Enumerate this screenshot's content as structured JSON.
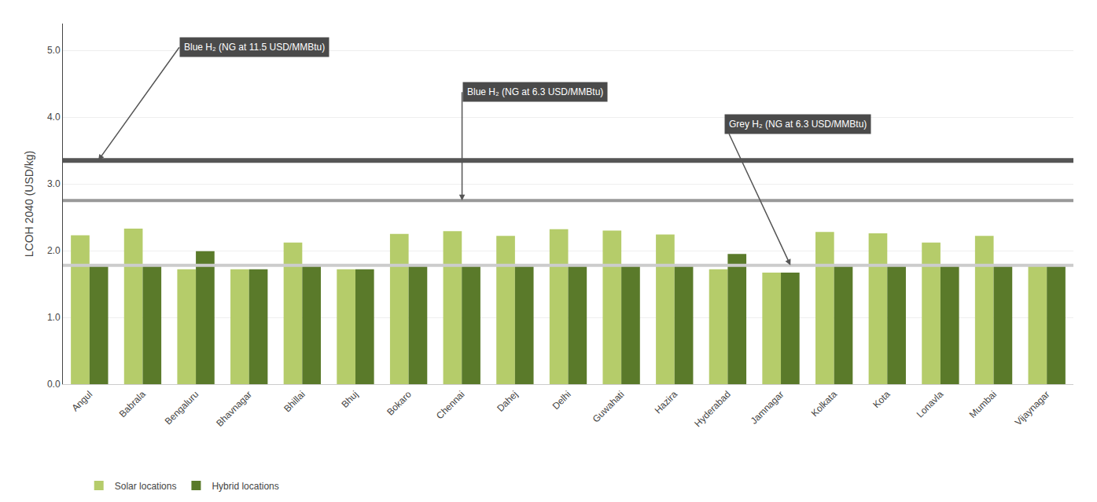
{
  "chart_data": {
    "type": "bar",
    "categories": [
      "Angul",
      "Babrala",
      "Bengaluru",
      "Bhavnagar",
      "Bhillai",
      "Bhuj",
      "Bokaro",
      "Chennai",
      "Dahej",
      "Delhi",
      "Guwahati",
      "Hazira",
      "Hyderabad",
      "Jamnagar",
      "Kolkata",
      "Kota",
      "Lonavla",
      "Mumbai",
      "Vijaynagar"
    ],
    "series": [
      {
        "name": "Solar locations",
        "color": "#b5cc6a",
        "values": [
          2.23,
          2.33,
          1.72,
          1.72,
          2.12,
          1.72,
          2.25,
          2.29,
          2.22,
          2.32,
          2.3,
          2.24,
          1.72,
          1.67,
          2.28,
          2.26,
          2.12,
          2.22,
          1.78
        ]
      },
      {
        "name": "Hybrid locations",
        "color": "#5a7a2a",
        "values": [
          1.78,
          1.78,
          1.99,
          1.72,
          1.78,
          1.72,
          1.78,
          1.78,
          1.78,
          1.78,
          1.78,
          1.78,
          1.95,
          1.67,
          1.78,
          1.78,
          1.78,
          1.78,
          1.78
        ]
      }
    ],
    "ylabel": "LCOH 2040 (USD/kg)",
    "ylim": [
      0,
      5.4
    ],
    "yticks": [
      {
        "value": 0.0,
        "label": "0.0"
      },
      {
        "value": 1.0,
        "label": "1.0"
      },
      {
        "value": 2.0,
        "label": "2.0"
      },
      {
        "value": 3.0,
        "label": "3.0"
      },
      {
        "value": 4.0,
        "label": "4.0"
      },
      {
        "value": 5.0,
        "label": "5.0"
      }
    ],
    "grid": true,
    "legend": "bottom left",
    "reference_lines": [
      {
        "value": 3.35,
        "color": "#555555"
      },
      {
        "value": 2.75,
        "color": "#999999"
      },
      {
        "value": 1.78,
        "color": "#cccccc"
      }
    ],
    "annotations": [
      {
        "text": "Blue H₂ (NG at 11.5 USD/MMBtu)",
        "value": 3.35,
        "color": "#4a4a4a"
      },
      {
        "text": "Blue H₂ (NG at 6.3 USD/MMBtu)",
        "value": 2.75,
        "color": "#4a4a4a"
      },
      {
        "text": "Grey H₂ (NG at 6.3 USD/MMBtu)",
        "value": 1.78,
        "color": "#4a4a4a"
      }
    ]
  }
}
